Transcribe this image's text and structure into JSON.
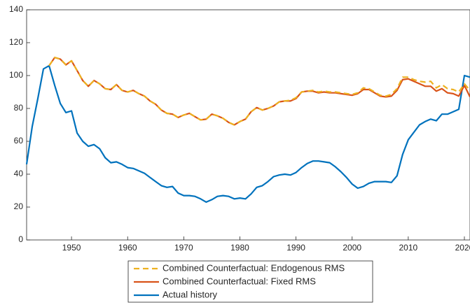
{
  "chart_data": {
    "type": "line",
    "x": [
      1942,
      1943,
      1944,
      1945,
      1946,
      1947,
      1948,
      1949,
      1950,
      1951,
      1952,
      1953,
      1954,
      1955,
      1956,
      1957,
      1958,
      1959,
      1960,
      1961,
      1962,
      1963,
      1964,
      1965,
      1966,
      1967,
      1968,
      1969,
      1970,
      1971,
      1972,
      1973,
      1974,
      1975,
      1976,
      1977,
      1978,
      1979,
      1980,
      1981,
      1982,
      1983,
      1984,
      1985,
      1986,
      1987,
      1988,
      1989,
      1990,
      1991,
      1992,
      1993,
      1994,
      1995,
      1996,
      1997,
      1998,
      1999,
      2000,
      2001,
      2002,
      2003,
      2004,
      2005,
      2006,
      2007,
      2008,
      2009,
      2010,
      2011,
      2012,
      2013,
      2014,
      2015,
      2016,
      2017,
      2018,
      2019,
      2020,
      2021
    ],
    "series": [
      {
        "name": "Combined Counterfactual: Endogenous RMS",
        "color": "#edb120",
        "dashed": true,
        "values": [
          null,
          null,
          null,
          null,
          106,
          111,
          110,
          106.5,
          109,
          103,
          97,
          93.5,
          97,
          95,
          92,
          91.5,
          94.5,
          91,
          90,
          91,
          89,
          87.5,
          84.5,
          82.5,
          79,
          77,
          76.5,
          74.5,
          76,
          77,
          75,
          73,
          73.5,
          76.5,
          75.5,
          74,
          71.5,
          70,
          72,
          73.5,
          78,
          80.5,
          79,
          80,
          81.5,
          84,
          84.5,
          85,
          86.5,
          90,
          90.5,
          91,
          90,
          90.5,
          90,
          90,
          89.5,
          89,
          88.5,
          89.5,
          92.5,
          92,
          90,
          88,
          87.5,
          88.5,
          92,
          99,
          99,
          97.5,
          96.5,
          96,
          96.5,
          92.5,
          94.5,
          92,
          91.5,
          90,
          95,
          91
        ]
      },
      {
        "name": "Combined Counterfactual: Fixed RMS",
        "color": "#d95319",
        "dashed": false,
        "values": [
          null,
          null,
          null,
          null,
          106,
          111,
          110,
          106.5,
          109,
          103,
          97,
          93.5,
          97,
          95,
          92,
          91.5,
          94.5,
          91,
          90,
          91,
          89,
          87.5,
          84.5,
          82.5,
          79,
          77,
          76.5,
          74.5,
          76,
          77,
          75,
          73,
          73.5,
          76.5,
          75.5,
          74,
          71.5,
          70,
          72,
          73.5,
          78,
          80.5,
          79,
          80,
          81.5,
          84,
          84.5,
          84.5,
          86,
          90,
          90.5,
          90.5,
          89.5,
          90,
          89.5,
          89.5,
          89,
          88.5,
          88,
          89,
          91.5,
          91.5,
          89.5,
          87.5,
          87,
          87.5,
          91,
          97.5,
          98,
          96.5,
          95,
          93.5,
          93.5,
          90.5,
          92,
          89.5,
          89,
          87.5,
          94,
          87
        ]
      },
      {
        "name": "Actual history",
        "color": "#0072bd",
        "dashed": false,
        "values": [
          46,
          69,
          86,
          104,
          106,
          94,
          83,
          77.5,
          78.5,
          65,
          60,
          57,
          58,
          55.5,
          50,
          47,
          47.5,
          46,
          44,
          43.5,
          42,
          40.5,
          38,
          35.5,
          33,
          32,
          32.5,
          28.5,
          27,
          27,
          26.5,
          25,
          23,
          24.5,
          26.5,
          27,
          26.5,
          25,
          25.5,
          25,
          28,
          32,
          33,
          35.5,
          38.5,
          39.5,
          40,
          39.5,
          41,
          44,
          46.5,
          48,
          48,
          47.5,
          47,
          44.5,
          41.5,
          38,
          34,
          31.5,
          32.5,
          34.5,
          35.5,
          35.5,
          35.5,
          35,
          39,
          52,
          61,
          65.5,
          70,
          72,
          73.5,
          72.5,
          76.5,
          76.5,
          78,
          79.5,
          100,
          99
        ]
      }
    ],
    "xlim": [
      1942,
      2021
    ],
    "ylim": [
      0,
      140
    ],
    "xticks": [
      1950,
      1960,
      1970,
      1980,
      1990,
      2000,
      2010,
      2020
    ],
    "yticks": [
      0,
      20,
      40,
      60,
      80,
      100,
      120,
      140
    ],
    "legend": "bottom"
  }
}
